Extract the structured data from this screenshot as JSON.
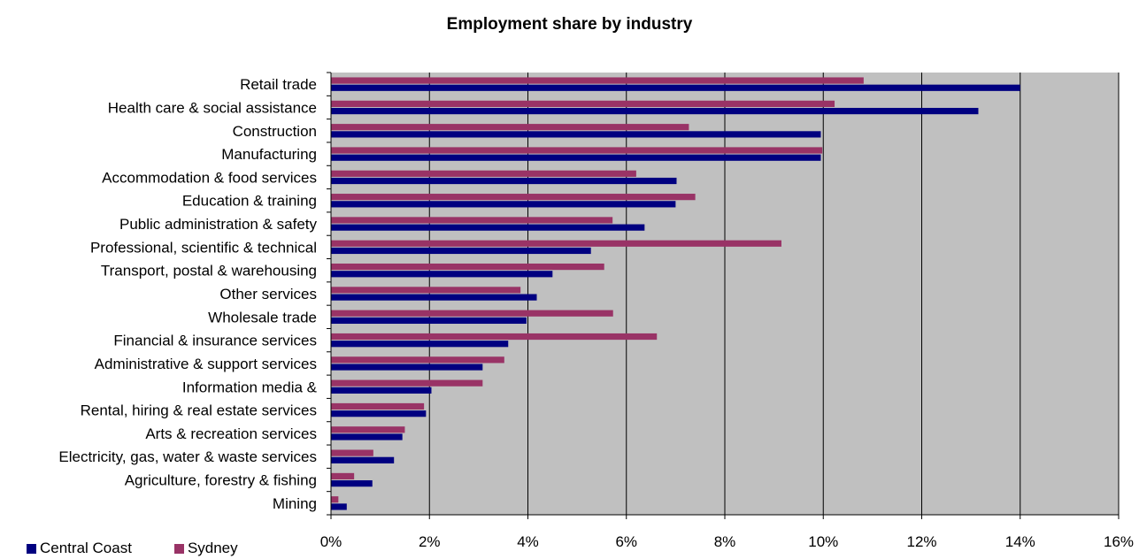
{
  "chart_data": {
    "type": "bar",
    "orientation": "horizontal",
    "title": "Employment share by industry",
    "xlabel": "",
    "ylabel": "",
    "xlim": [
      0,
      16
    ],
    "x_ticks": [
      "0%",
      "2%",
      "4%",
      "6%",
      "8%",
      "10%",
      "12%",
      "14%",
      "16%"
    ],
    "grid": "vertical",
    "legend_position": "bottom-left",
    "categories": [
      "Retail trade",
      "Health care & social assistance",
      "Construction",
      "Manufacturing",
      "Accommodation & food services",
      "Education & training",
      "Public administration & safety",
      "Professional, scientific & technical",
      "Transport, postal & warehousing",
      "Other services",
      "Wholesale trade",
      "Financial & insurance services",
      "Administrative & support services",
      "Information media &",
      "Rental, hiring & real estate services",
      "Arts & recreation services",
      "Electricity, gas, water & waste services",
      "Agriculture, forestry & fishing",
      "Mining"
    ],
    "series": [
      {
        "name": "Central Coast",
        "color": "#000080",
        "values": [
          14.0,
          13.15,
          9.95,
          9.95,
          7.02,
          7.0,
          6.37,
          5.28,
          4.5,
          4.18,
          3.97,
          3.6,
          3.08,
          2.04,
          1.93,
          1.45,
          1.28,
          0.84,
          0.32
        ]
      },
      {
        "name": "Sydney",
        "color": "#993366",
        "values": [
          10.82,
          10.23,
          7.27,
          9.98,
          6.2,
          7.4,
          5.72,
          9.15,
          5.55,
          3.85,
          5.73,
          6.62,
          3.52,
          3.08,
          1.89,
          1.5,
          0.86,
          0.47,
          0.15
        ]
      }
    ]
  },
  "style": {
    "plot_background": "#c0c0c0",
    "gridline_color": "#000000"
  }
}
